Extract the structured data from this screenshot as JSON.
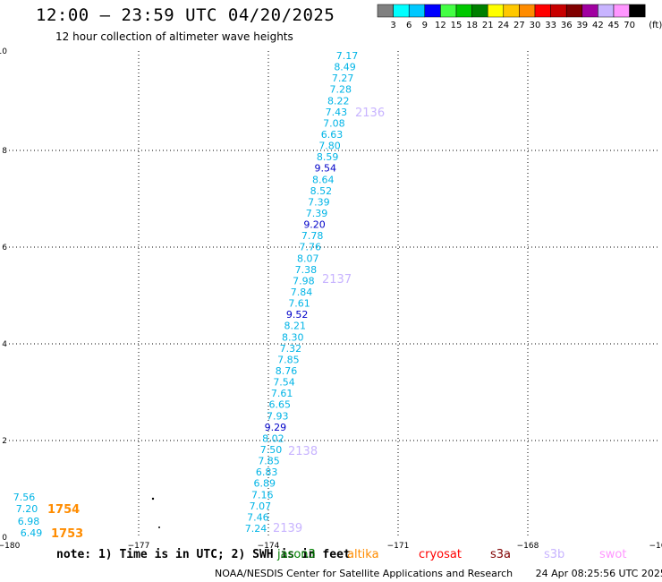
{
  "header": {
    "title": "12:00 – 23:59 UTC 04/20/2025",
    "subtitle": "12 hour collection of altimeter wave heights"
  },
  "colorbar": {
    "unit": "(ft)",
    "colors": [
      "#808080",
      "#00ffff",
      "#00c8ff",
      "#0000ff",
      "#44ff44",
      "#00c800",
      "#008000",
      "#ffff00",
      "#ffc800",
      "#ff8c00",
      "#ff0000",
      "#c80000",
      "#800000",
      "#a000a0",
      "#c8b4ff",
      "#ff96ff",
      "#000000"
    ],
    "labels": [
      "3",
      "6",
      "9",
      "12",
      "15",
      "18",
      "21",
      "24",
      "27",
      "30",
      "33",
      "36",
      "39",
      "42",
      "45",
      "70"
    ]
  },
  "axes": {
    "x_ticks": [
      "−180",
      "−177",
      "−174",
      "−171",
      "−168",
      "−16"
    ],
    "y_ticks": [
      "0",
      "2",
      "4",
      "6",
      "8",
      "10"
    ]
  },
  "passes": [
    {
      "label": "2136",
      "color": "#c8b4ff"
    },
    {
      "label": "2137",
      "color": "#c8b4ff"
    },
    {
      "label": "2138",
      "color": "#c8b4ff"
    },
    {
      "label": "2139",
      "color": "#c8b4ff"
    },
    {
      "label": "1754",
      "color": "#ff8c00"
    },
    {
      "label": "1753",
      "color": "#ff8c00"
    }
  ],
  "track_main": {
    "values": [
      "7.17",
      "8.49",
      "7.27",
      "7.28",
      "8.22",
      "7.43",
      "7.08",
      "6.63",
      "7.80",
      "8.59",
      "9.54",
      "8.64",
      "8.52",
      "7.39",
      "7.39",
      "9.20",
      "7.78",
      "7.76",
      "8.07",
      "7.38",
      "7.98",
      "7.84",
      "7.61",
      "9.52",
      "8.21",
      "8.30",
      "7.32",
      "7.85",
      "8.76",
      "7.54",
      "7.61",
      "6.65",
      "7.93",
      "9.29",
      "8.02",
      "7.50",
      "7.85",
      "6.83",
      "6.89",
      "7.16",
      "7.07",
      "7.46",
      "7.24"
    ],
    "dark_values": [
      "9.54",
      "9.20",
      "9.52",
      "9.29"
    ]
  },
  "track_left": {
    "values": [
      "7.56",
      "7.20",
      "6.98",
      "6.49"
    ]
  },
  "legend": {
    "note": "note:  1) Time is in UTC;  2) SWH is in feet",
    "satellites": [
      {
        "name": "jason3",
        "color": "#008000"
      },
      {
        "name": "altika",
        "color": "#ff8c00"
      },
      {
        "name": "cryosat",
        "color": "#ff0000"
      },
      {
        "name": "s3a",
        "color": "#800000"
      },
      {
        "name": "s3b",
        "color": "#c8b4ff"
      },
      {
        "name": "swot",
        "color": "#ff96ff"
      }
    ]
  },
  "footer": {
    "credit": "NOAA/NESDIS Center for Satellite Applications and Research",
    "timestamp": "24 Apr 08:25:56 UTC 2025"
  }
}
